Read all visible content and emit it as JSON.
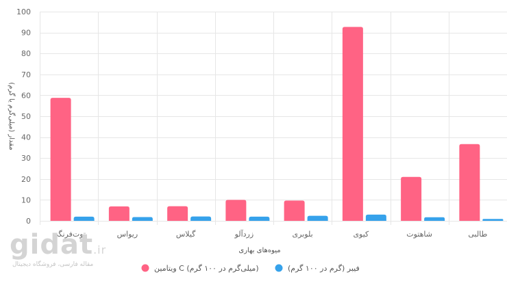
{
  "chart_data": {
    "type": "bar",
    "categories": [
      "توت‌فرنگی",
      "ریواس",
      "گیلاس",
      "زردآلو",
      "بلوبری",
      "کیوی",
      "شاهتوت",
      "طالبی"
    ],
    "series": [
      {
        "name": "ویتامین C (میلی‌گرم در ۱۰۰ گرم)",
        "color": "#ff6384",
        "values": [
          58.8,
          6.9,
          7.0,
          10.0,
          9.7,
          92.7,
          21.0,
          36.7
        ]
      },
      {
        "name": "فیبر (گرم در ۱۰۰ گرم)",
        "color": "#36a2eb",
        "values": [
          2.0,
          1.8,
          2.1,
          2.0,
          2.4,
          3.0,
          1.7,
          0.9
        ]
      }
    ],
    "xlabel": "میوه‌های بهاری",
    "ylabel": "مقدار (میلی‌گرم یا گرم)",
    "ylim": [
      0,
      100
    ],
    "yticks": [
      0,
      10,
      20,
      30,
      40,
      50,
      60,
      70,
      80,
      90,
      100
    ],
    "grid": true,
    "legend_position": "bottom"
  },
  "watermark": {
    "logo": "gidat",
    "suffix": ".ir",
    "tagline": "مقاله فارسی، فروشگاه دیجیتال"
  }
}
